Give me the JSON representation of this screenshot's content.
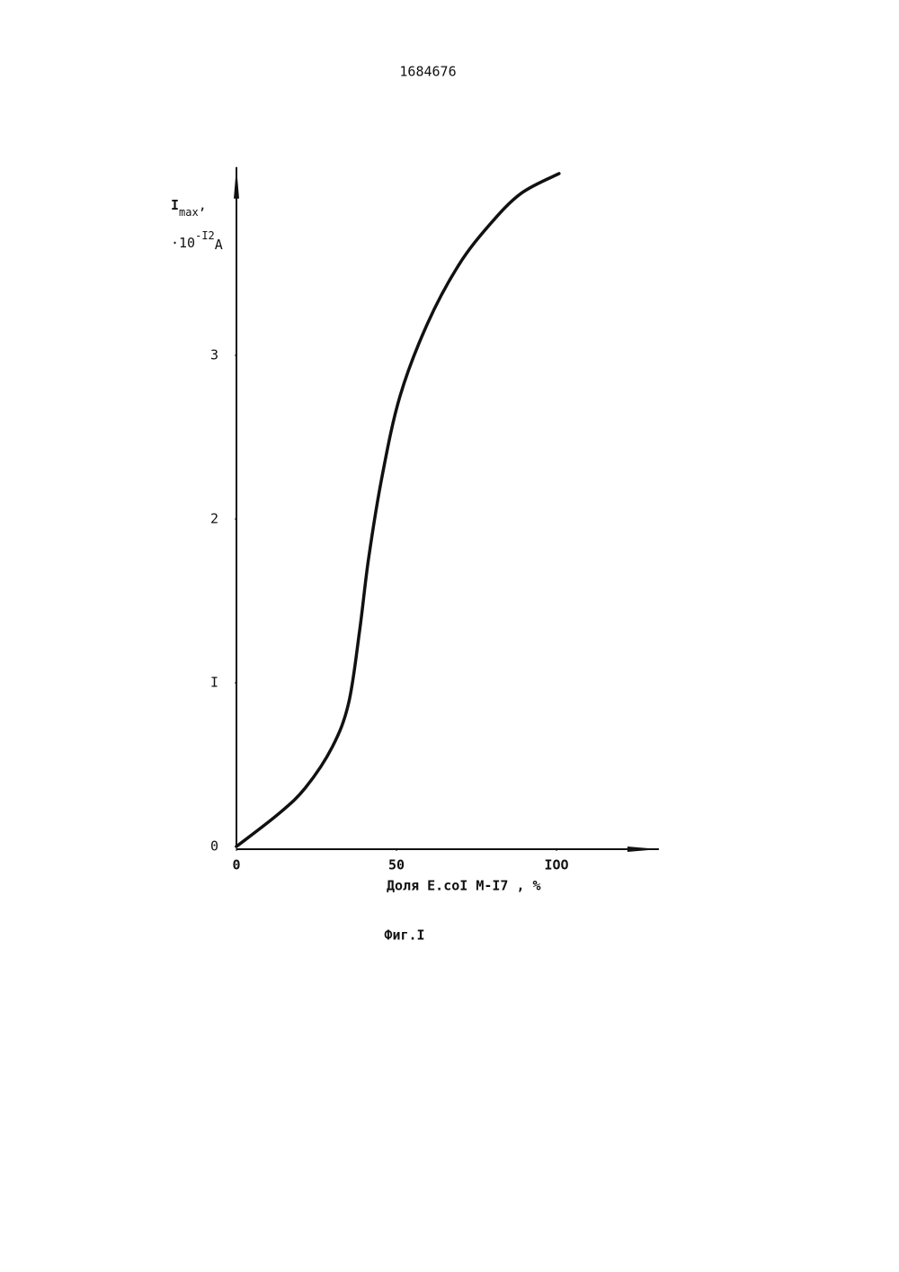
{
  "chart_data": {
    "type": "line",
    "page_number": "1684676",
    "y_label": {
      "main": "I",
      "sub": "max",
      "comma": ",",
      "base": "·10",
      "sup": "-I2",
      "unit": "A"
    },
    "x_label": "Доля  E.coI  M-I7 , %",
    "caption": "Фиг.I",
    "x": [
      0,
      13.2,
      21.6,
      30,
      35.1,
      38.5,
      41.3,
      45.5,
      51.1,
      59.6,
      69.4,
      79.2,
      89,
      100.8
    ],
    "values": [
      0,
      0.2,
      0.36,
      0.61,
      0.88,
      1.32,
      1.76,
      2.26,
      2.75,
      3.19,
      3.55,
      3.8,
      3.99,
      4.11
    ],
    "color": "#111111",
    "xlim": [
      0,
      132
    ],
    "ylim": [
      0,
      4.15
    ],
    "xticks": [
      0,
      50,
      {
        "value": 100,
        "label": "IOO"
      }
    ],
    "yticks": [
      0,
      {
        "value": 1,
        "label": "I"
      },
      2,
      3
    ]
  }
}
